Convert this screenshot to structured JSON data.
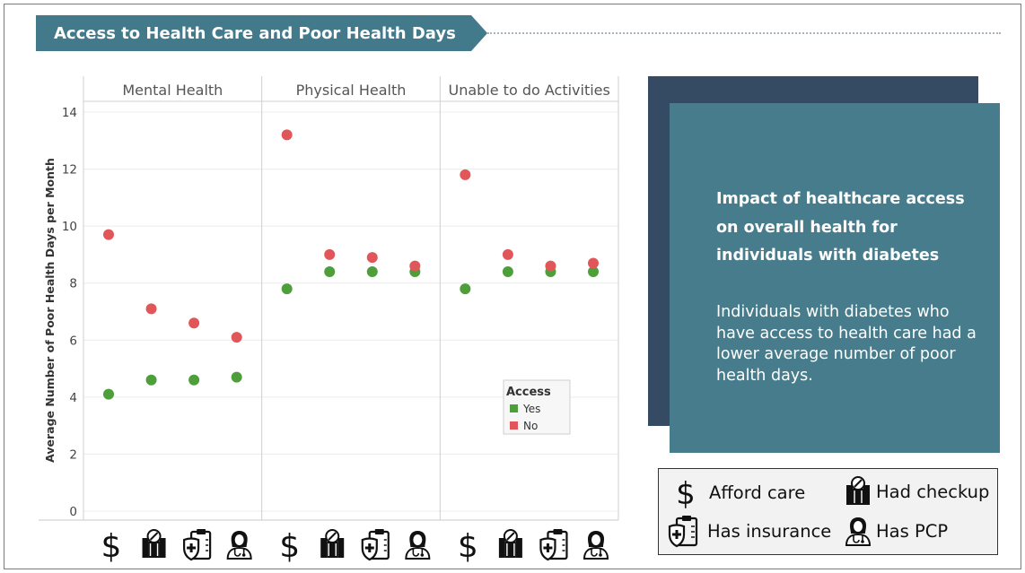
{
  "title": "Access to Health Care and Poor Health Days",
  "colors": {
    "yes": "#4f9e3c",
    "no": "#e15759",
    "banner": "#437a8b",
    "dark_panel": "#354a63",
    "teal_panel": "#467c8c"
  },
  "chart_data": {
    "type": "scatter",
    "title": "",
    "ylabel": "Average Number of Poor Health Days per Month",
    "ylim": [
      0,
      14
    ],
    "yticks": [
      0,
      2,
      4,
      6,
      8,
      10,
      12,
      14
    ],
    "panels": [
      "Mental Health",
      "Physical Health",
      "Unable to do Activities"
    ],
    "categories": [
      "Afford care",
      "Had checkup",
      "Has insurance",
      "Has PCP"
    ],
    "category_icons": [
      "dollar-icon",
      "checkup-icon",
      "insurance-icon",
      "doctor-icon"
    ],
    "series": [
      {
        "name": "Yes",
        "color": "#4f9e3c",
        "values": [
          [
            4.1,
            4.6,
            4.6,
            4.7
          ],
          [
            7.8,
            8.4,
            8.4,
            8.4
          ],
          [
            7.8,
            8.4,
            8.4,
            8.4
          ]
        ]
      },
      {
        "name": "No",
        "color": "#e15759",
        "values": [
          [
            9.7,
            7.1,
            6.6,
            6.1
          ],
          [
            13.2,
            9.0,
            8.9,
            8.6
          ],
          [
            11.8,
            9.0,
            8.6,
            8.7
          ]
        ]
      }
    ],
    "legend": {
      "title": "Access",
      "placement": "inside-bottom-right-of-first-row"
    },
    "grid": true
  },
  "insight": {
    "heading": "Impact of healthcare access on overall health for individuals with diabetes",
    "body": "Individuals with diabetes who have access to health care had a lower average number of poor health days."
  },
  "key": {
    "afford": "Afford care",
    "checkup": "Had checkup",
    "insurance": "Has insurance",
    "pcp": "Has PCP"
  }
}
